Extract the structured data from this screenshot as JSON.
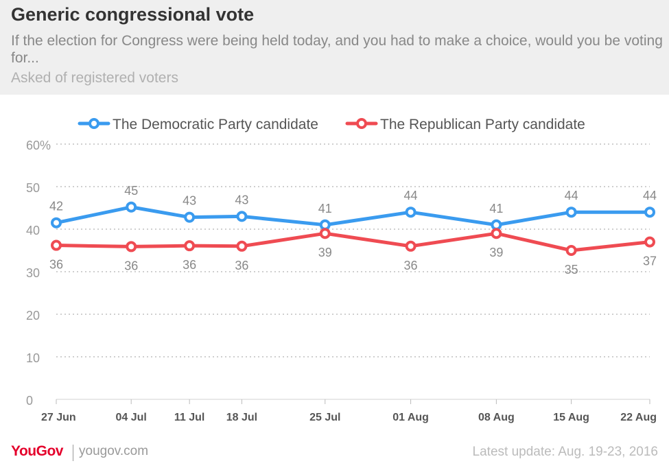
{
  "header": {
    "title": "Generic congressional vote",
    "subtitle": "If the election for Congress were being held today, and you had to make a choice, would you be voting for...",
    "note": "Asked of registered voters"
  },
  "footer": {
    "logo": "YouGov",
    "site": "yougov.com",
    "update": "Latest update: Aug. 19-23, 2016"
  },
  "chart_data": {
    "type": "line",
    "x": [
      "27 Jun",
      "04 Jul",
      "11 Jul",
      "18 Jul",
      "25 Jul",
      "01 Aug",
      "08 Aug",
      "15 Aug",
      "22 Aug"
    ],
    "x_positions": [
      0,
      6.3,
      11.2,
      15.6,
      22.6,
      29.8,
      37,
      43.3,
      49.9
    ],
    "y_ticks": [
      "0",
      "10",
      "20",
      "30",
      "40",
      "50",
      "60%"
    ],
    "ylim": [
      0,
      60
    ],
    "grid": true,
    "legend_position": "top",
    "series": [
      {
        "name": "The Democratic Party candidate",
        "color": "#3a9bef",
        "values": [
          41.5,
          45.2,
          42.8,
          43,
          41,
          44,
          41,
          44,
          44
        ],
        "labels": [
          "42",
          "45",
          "43",
          "43",
          "41",
          "44",
          "41",
          "44",
          "44"
        ],
        "label_position": "above"
      },
      {
        "name": "The Republican Party candidate",
        "color": "#ef4b52",
        "values": [
          36.2,
          35.9,
          36.1,
          36,
          39,
          36,
          39,
          35,
          37
        ],
        "labels": [
          "36",
          "36",
          "36",
          "36",
          "39",
          "36",
          "39",
          "35",
          "37"
        ],
        "label_position": "below"
      }
    ]
  }
}
